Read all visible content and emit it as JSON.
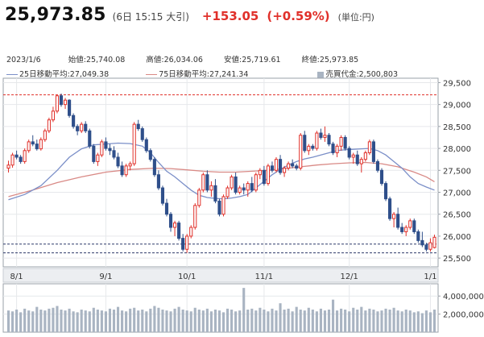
{
  "header": {
    "price": "25,973.85",
    "time": "(6日 15:15 大引)",
    "change": "+153.05",
    "change_pct": "(+0.59%)",
    "unit": "(単位:円)"
  },
  "info": {
    "date": "2023/1/6",
    "open_label": "始値:",
    "open_value": "25,740.08",
    "high_label": "高値:",
    "high_value": "26,034.06",
    "low_label": "安値:",
    "low_value": "25,719.61",
    "close_label": "終値:",
    "close_value": "25,973.85",
    "ma25_label": "25日移動平均:",
    "ma25_value": "27,049.38",
    "ma75_label": "75日移動平均:",
    "ma75_value": "27,241.34",
    "volume_label": "売買代金:",
    "volume_value": "2,500,803"
  },
  "colors": {
    "up": "#e0302a",
    "down": "#2f4f8a",
    "ma25": "#7b8fc8",
    "ma75": "#d98a86",
    "volume": "#a9b4c2",
    "red_line": "#e0302a",
    "dash_line": "#2f3a6a"
  },
  "chart_data": {
    "type": "candlestick",
    "price_axis": {
      "ylim": [
        25300,
        29600
      ],
      "ticks": [
        "29,500",
        "29,000",
        "28,500",
        "28,000",
        "27,500",
        "27,000",
        "26,500",
        "26,000",
        "25,500"
      ],
      "tick_values": [
        29500,
        29000,
        28500,
        28000,
        27500,
        27000,
        26500,
        26000,
        25500
      ]
    },
    "volume_axis": {
      "ylim": [
        0,
        5000000
      ],
      "ticks": [
        "4,000,000",
        "2,000,000"
      ],
      "tick_values": [
        4000000,
        2000000
      ]
    },
    "x_labels": [
      {
        "label": "8/1",
        "index": 2
      },
      {
        "label": "9/1",
        "index": 24
      },
      {
        "label": "10/1",
        "index": 44
      },
      {
        "label": "11/1",
        "index": 63
      },
      {
        "label": "12/1",
        "index": 84
      },
      {
        "label": "1/1",
        "index": 104
      }
    ],
    "reference_lines": {
      "high": 29222,
      "dashed": [
        25820,
        25620
      ]
    },
    "candles": [
      [
        27550,
        27720,
        27450,
        27620
      ],
      [
        27620,
        27900,
        27560,
        27850
      ],
      [
        27850,
        27950,
        27750,
        27800
      ],
      [
        27800,
        27850,
        27650,
        27700
      ],
      [
        27700,
        28000,
        27650,
        27950
      ],
      [
        27950,
        28200,
        27900,
        28150
      ],
      [
        28150,
        28300,
        28050,
        28100
      ],
      [
        28100,
        28200,
        27950,
        27990
      ],
      [
        27990,
        28250,
        27950,
        28200
      ],
      [
        28200,
        28450,
        28150,
        28400
      ],
      [
        28400,
        28700,
        28350,
        28650
      ],
      [
        28650,
        28950,
        28600,
        28850
      ],
      [
        28850,
        29222,
        28800,
        29200
      ],
      [
        29200,
        29250,
        28950,
        29000
      ],
      [
        29000,
        29150,
        28900,
        29100
      ],
      [
        29100,
        29120,
        28700,
        28750
      ],
      [
        28750,
        28800,
        28450,
        28500
      ],
      [
        28500,
        28550,
        28300,
        28400
      ],
      [
        28400,
        28600,
        28350,
        28550
      ],
      [
        28550,
        28620,
        28350,
        28400
      ],
      [
        28400,
        28450,
        28000,
        28050
      ],
      [
        28050,
        28100,
        27650,
        27700
      ],
      [
        27700,
        27900,
        27600,
        27850
      ],
      [
        27850,
        28200,
        27800,
        28150
      ],
      [
        28150,
        28250,
        27950,
        28000
      ],
      [
        28000,
        28100,
        27850,
        27950
      ],
      [
        27950,
        28050,
        27750,
        27800
      ],
      [
        27800,
        27900,
        27550,
        27600
      ],
      [
        27600,
        27700,
        27350,
        27400
      ],
      [
        27400,
        27650,
        27350,
        27600
      ],
      [
        27600,
        27700,
        27500,
        27650
      ],
      [
        27650,
        28600,
        27600,
        28550
      ],
      [
        28550,
        28650,
        28400,
        28450
      ],
      [
        28450,
        28500,
        28150,
        28200
      ],
      [
        28200,
        28250,
        27900,
        27950
      ],
      [
        27950,
        28000,
        27700,
        27750
      ],
      [
        27750,
        27800,
        27350,
        27400
      ],
      [
        27400,
        27500,
        27050,
        27100
      ],
      [
        27100,
        27150,
        26700,
        26750
      ],
      [
        26750,
        26850,
        26450,
        26500
      ],
      [
        26500,
        26550,
        26100,
        26200
      ],
      [
        26200,
        26350,
        26000,
        26300
      ],
      [
        26300,
        26350,
        25900,
        25950
      ],
      [
        25950,
        26050,
        25650,
        25700
      ],
      [
        25700,
        26050,
        25620,
        26000
      ],
      [
        26000,
        26250,
        25950,
        26200
      ],
      [
        26200,
        26750,
        26150,
        26700
      ],
      [
        26700,
        27100,
        26650,
        27050
      ],
      [
        27050,
        27450,
        27000,
        27400
      ],
      [
        27400,
        27500,
        27000,
        27050
      ],
      [
        27050,
        27250,
        26900,
        27150
      ],
      [
        27150,
        27300,
        26750,
        26800
      ],
      [
        26800,
        26850,
        26450,
        26500
      ],
      [
        26500,
        26950,
        26450,
        26900
      ],
      [
        26900,
        27150,
        26850,
        27100
      ],
      [
        27100,
        27400,
        27050,
        27350
      ],
      [
        27350,
        27450,
        26950,
        27000
      ],
      [
        27000,
        27150,
        26950,
        27100
      ],
      [
        27100,
        27200,
        26950,
        27050
      ],
      [
        27050,
        27250,
        26900,
        27200
      ],
      [
        27200,
        27350,
        27000,
        27050
      ],
      [
        27050,
        27450,
        27000,
        27400
      ],
      [
        27400,
        27550,
        27300,
        27500
      ],
      [
        27500,
        27600,
        27150,
        27200
      ],
      [
        27200,
        27650,
        27150,
        27600
      ],
      [
        27600,
        27700,
        27450,
        27500
      ],
      [
        27500,
        27800,
        27450,
        27750
      ],
      [
        27750,
        27850,
        27400,
        27450
      ],
      [
        27450,
        27600,
        27350,
        27550
      ],
      [
        27550,
        27700,
        27500,
        27650
      ],
      [
        27650,
        27750,
        27550,
        27600
      ],
      [
        27600,
        27650,
        27500,
        27550
      ],
      [
        27550,
        28350,
        27500,
        28300
      ],
      [
        28300,
        28400,
        27900,
        27950
      ],
      [
        27950,
        28100,
        27850,
        28050
      ],
      [
        28050,
        28100,
        27950,
        28000
      ],
      [
        28000,
        28400,
        27950,
        28350
      ],
      [
        28350,
        28450,
        28200,
        28250
      ],
      [
        28250,
        28500,
        28150,
        28300
      ],
      [
        28300,
        28350,
        28050,
        28100
      ],
      [
        28100,
        28150,
        27850,
        27900
      ],
      [
        27900,
        28100,
        27800,
        28050
      ],
      [
        28050,
        28300,
        27950,
        28250
      ],
      [
        28250,
        28300,
        27950,
        28000
      ],
      [
        28000,
        28050,
        27750,
        27800
      ],
      [
        27800,
        27900,
        27650,
        27850
      ],
      [
        27850,
        27950,
        27600,
        27650
      ],
      [
        27650,
        27800,
        27450,
        27750
      ],
      [
        27750,
        27950,
        27700,
        27900
      ],
      [
        27900,
        28200,
        27850,
        28150
      ],
      [
        28150,
        28200,
        27650,
        27700
      ],
      [
        27700,
        27750,
        27450,
        27500
      ],
      [
        27500,
        27550,
        27150,
        27200
      ],
      [
        27200,
        27250,
        26800,
        26850
      ],
      [
        26850,
        26900,
        26350,
        26400
      ],
      [
        26400,
        26550,
        26200,
        26500
      ],
      [
        26500,
        26650,
        26150,
        26200
      ],
      [
        26200,
        26300,
        26050,
        26100
      ],
      [
        26100,
        26250,
        26000,
        26200
      ],
      [
        26200,
        26400,
        26150,
        26350
      ],
      [
        26350,
        26400,
        26050,
        26100
      ],
      [
        26100,
        26150,
        25850,
        25900
      ],
      [
        25900,
        26100,
        25750,
        25800
      ],
      [
        25800,
        25850,
        25650,
        25700
      ],
      [
        25700,
        25950,
        25650,
        25850
      ],
      [
        25740,
        26034,
        25720,
        25974
      ]
    ],
    "ma25": [
      [
        0,
        26830
      ],
      [
        4,
        26950
      ],
      [
        8,
        27150
      ],
      [
        12,
        27500
      ],
      [
        15,
        27800
      ],
      [
        18,
        27990
      ],
      [
        21,
        28080
      ],
      [
        24,
        28100
      ],
      [
        27,
        28120
      ],
      [
        30,
        28110
      ],
      [
        33,
        28050
      ],
      [
        35,
        27900
      ],
      [
        37,
        27680
      ],
      [
        39,
        27480
      ],
      [
        41,
        27350
      ],
      [
        43,
        27200
      ],
      [
        45,
        27050
      ],
      [
        47,
        26930
      ],
      [
        49,
        26880
      ],
      [
        51,
        26860
      ],
      [
        53,
        26850
      ],
      [
        55,
        26870
      ],
      [
        57,
        26900
      ],
      [
        59,
        26950
      ],
      [
        61,
        27100
      ],
      [
        63,
        27250
      ],
      [
        65,
        27400
      ],
      [
        67,
        27520
      ],
      [
        69,
        27620
      ],
      [
        71,
        27700
      ],
      [
        73,
        27760
      ],
      [
        75,
        27800
      ],
      [
        77,
        27850
      ],
      [
        79,
        27900
      ],
      [
        81,
        27950
      ],
      [
        83,
        27970
      ],
      [
        85,
        27980
      ],
      [
        87,
        27990
      ],
      [
        89,
        28000
      ],
      [
        91,
        27950
      ],
      [
        93,
        27850
      ],
      [
        95,
        27700
      ],
      [
        97,
        27550
      ],
      [
        99,
        27350
      ],
      [
        101,
        27200
      ],
      [
        103,
        27120
      ],
      [
        105,
        27049
      ]
    ],
    "ma75": [
      [
        0,
        26900
      ],
      [
        6,
        27050
      ],
      [
        12,
        27220
      ],
      [
        18,
        27350
      ],
      [
        24,
        27460
      ],
      [
        30,
        27520
      ],
      [
        36,
        27550
      ],
      [
        40,
        27540
      ],
      [
        44,
        27510
      ],
      [
        48,
        27480
      ],
      [
        52,
        27460
      ],
      [
        56,
        27460
      ],
      [
        60,
        27480
      ],
      [
        64,
        27500
      ],
      [
        68,
        27540
      ],
      [
        72,
        27580
      ],
      [
        76,
        27620
      ],
      [
        80,
        27650
      ],
      [
        84,
        27670
      ],
      [
        88,
        27680
      ],
      [
        92,
        27650
      ],
      [
        96,
        27580
      ],
      [
        100,
        27460
      ],
      [
        103,
        27350
      ],
      [
        105,
        27241
      ]
    ],
    "volume": [
      2.4,
      2.3,
      2.5,
      2.2,
      2.6,
      2.4,
      2.3,
      2.8,
      2.5,
      2.4,
      2.6,
      2.7,
      2.9,
      2.5,
      2.4,
      2.6,
      2.3,
      2.2,
      2.5,
      2.4,
      2.3,
      2.7,
      2.5,
      2.4,
      2.3,
      2.6,
      2.5,
      2.8,
      2.4,
      2.3,
      2.6,
      2.7,
      2.4,
      2.5,
      2.3,
      2.6,
      2.9,
      2.7,
      2.5,
      2.4,
      2.3,
      2.6,
      2.8,
      2.5,
      2.4,
      2.3,
      2.7,
      2.5,
      2.4,
      2.6,
      2.3,
      2.5,
      2.4,
      2.2,
      2.6,
      2.5,
      2.3,
      2.4,
      4.9,
      2.5,
      2.6,
      2.4,
      2.7,
      2.5,
      2.3,
      2.6,
      2.4,
      3.2,
      2.5,
      2.6,
      2.3,
      2.8,
      2.5,
      2.4,
      2.7,
      2.5,
      2.3,
      2.6,
      2.4,
      2.5,
      3.6,
      2.4,
      2.6,
      2.5,
      2.3,
      2.7,
      2.5,
      2.8,
      2.4,
      2.6,
      2.5,
      2.3,
      2.4,
      2.6,
      2.5,
      2.7,
      2.4,
      2.3,
      2.5,
      2.4,
      2.2,
      2.3,
      2.1,
      2.4,
      2.2,
      2.5
    ]
  }
}
